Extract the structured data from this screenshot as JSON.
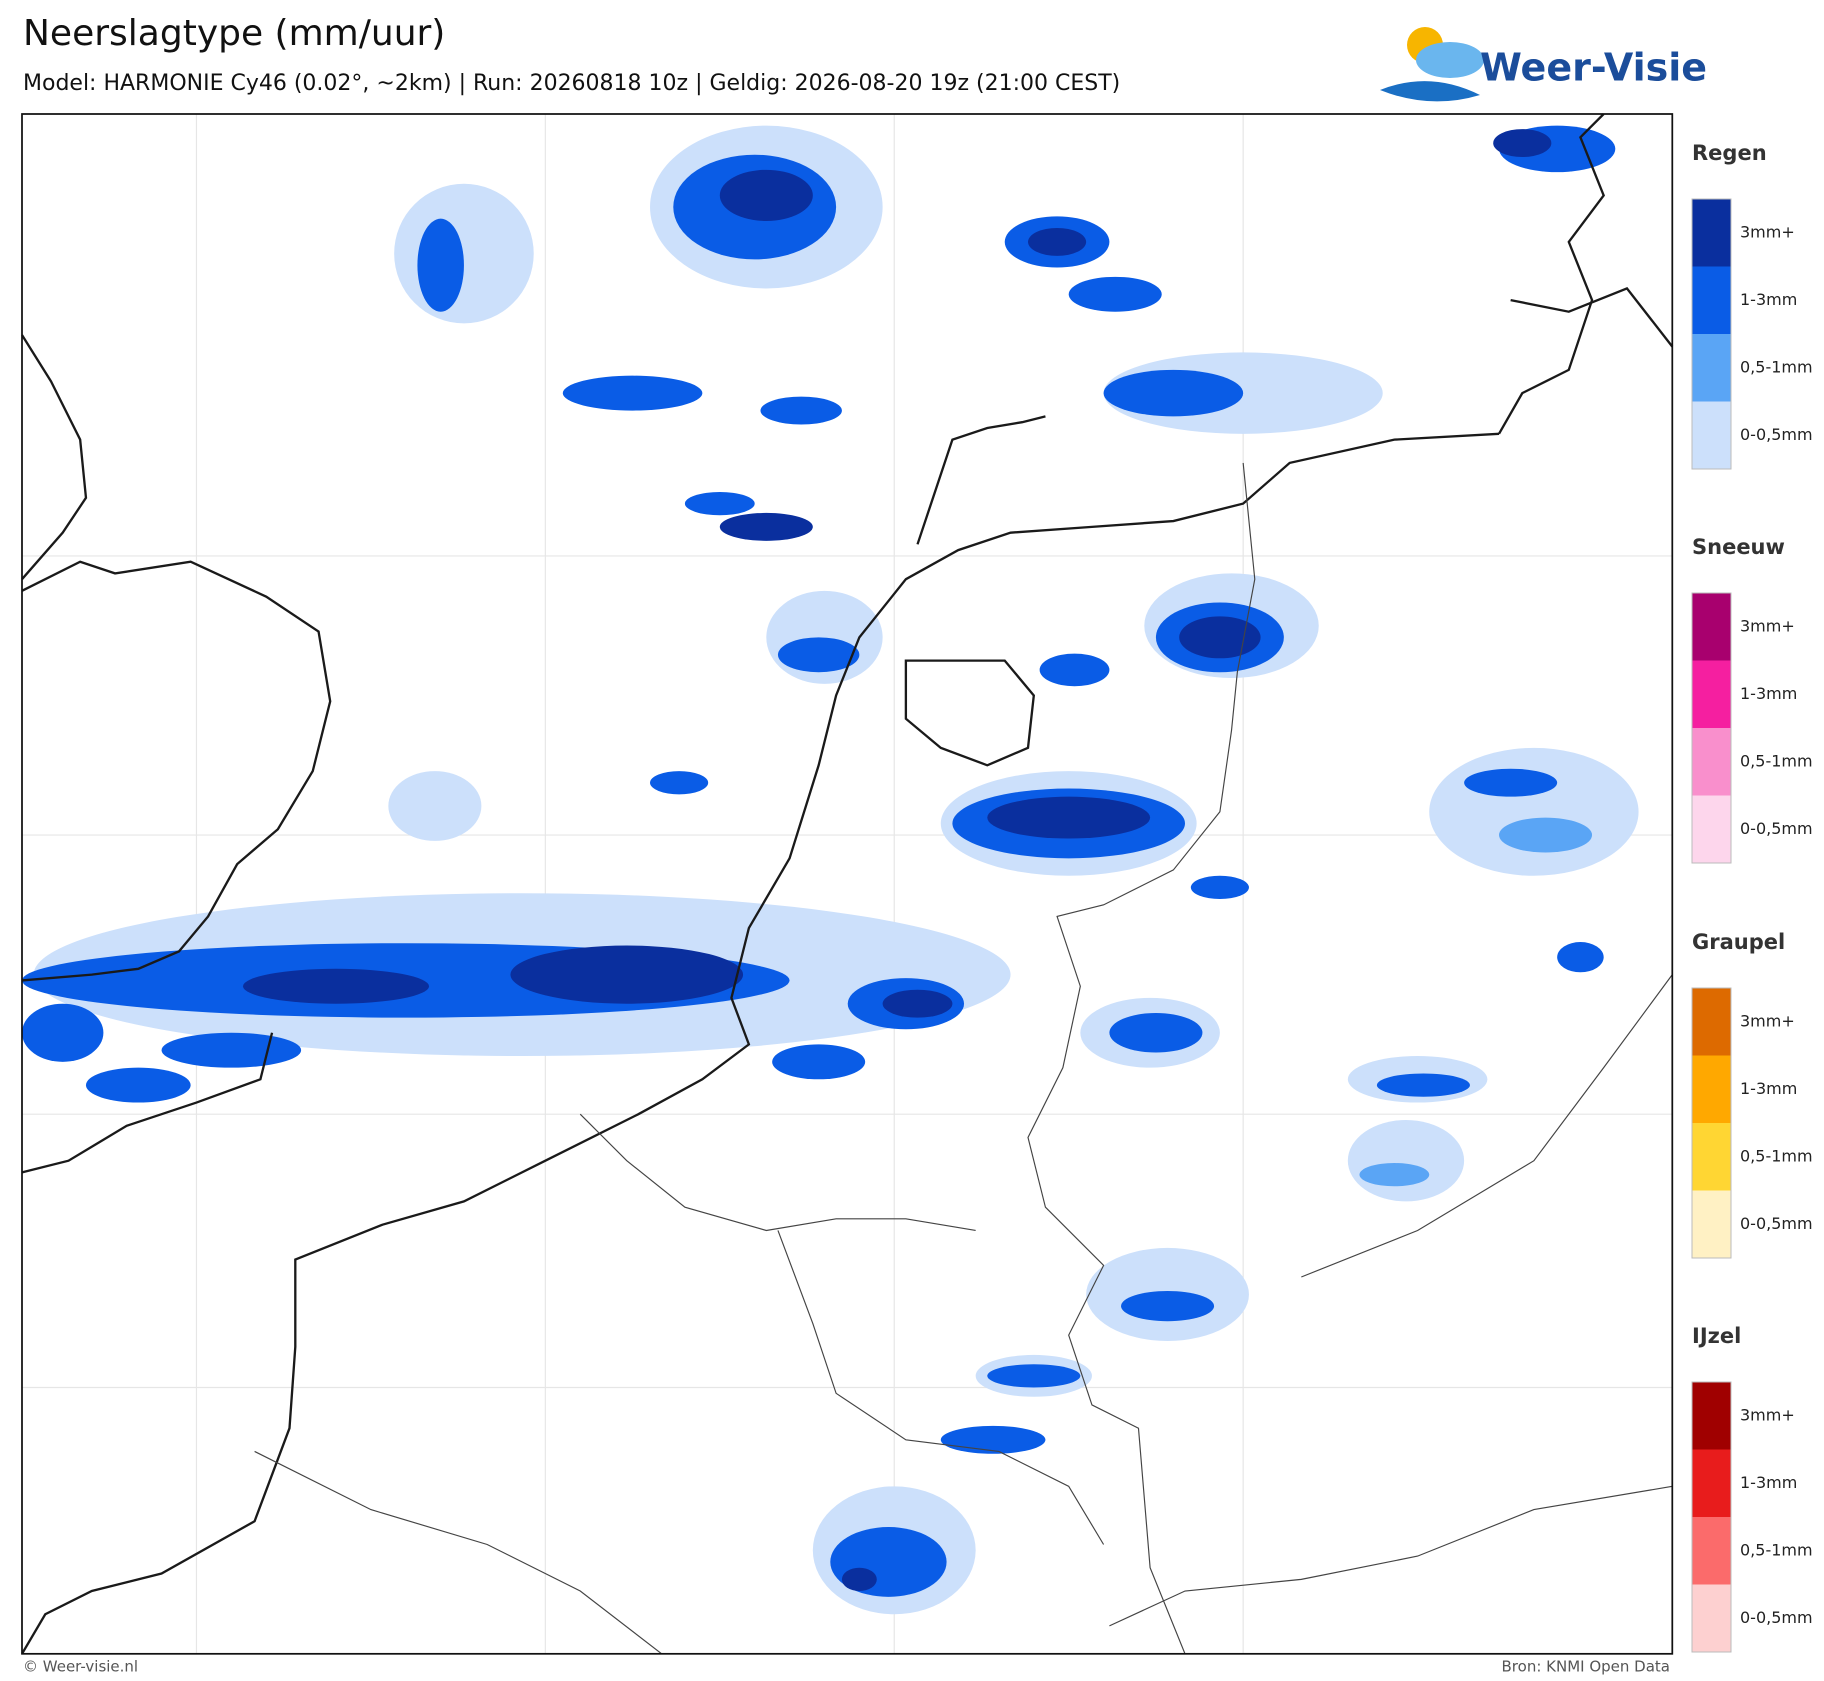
{
  "header": {
    "title": "Neerslagtype (mm/uur)",
    "subtitle": "Model: HARMONIE Cy46 (0.02°, ~2km)  |  Run: 20260818 10z  |  Geldig: 2026-08-20 19z (21:00 CEST)",
    "logo": "Weer-Visie"
  },
  "legend": [
    {
      "title": "Regen",
      "levels": [
        {
          "label": "3mm+",
          "color": "#0a2f9e"
        },
        {
          "label": "1-3mm",
          "color": "#0a5ce6"
        },
        {
          "label": "0,5-1mm",
          "color": "#5aa5f5"
        },
        {
          "label": "0-0,5mm",
          "color": "#cce0fb"
        }
      ]
    },
    {
      "title": "Sneeuw",
      "levels": [
        {
          "label": "3mm+",
          "color": "#a8006e"
        },
        {
          "label": "1-3mm",
          "color": "#f51fa0"
        },
        {
          "label": "0,5-1mm",
          "color": "#f98fcc"
        },
        {
          "label": "0-0,5mm",
          "color": "#fdd6ec"
        }
      ]
    },
    {
      "title": "Graupel",
      "levels": [
        {
          "label": "3mm+",
          "color": "#dd6a00"
        },
        {
          "label": "1-3mm",
          "color": "#ffa800"
        },
        {
          "label": "0,5-1mm",
          "color": "#ffd633"
        },
        {
          "label": "0-0,5mm",
          "color": "#fff1c4"
        }
      ]
    },
    {
      "title": "IJzel",
      "levels": [
        {
          "label": "3mm+",
          "color": "#a00000"
        },
        {
          "label": "1-3mm",
          "color": "#e81c1c"
        },
        {
          "label": "0,5-1mm",
          "color": "#fb6b6b"
        },
        {
          "label": "0-0,5mm",
          "color": "#fdd0d0"
        }
      ]
    }
  ],
  "footer": {
    "left": "© Weer-visie.nl",
    "right": "Bron: KNMI Open Data"
  }
}
